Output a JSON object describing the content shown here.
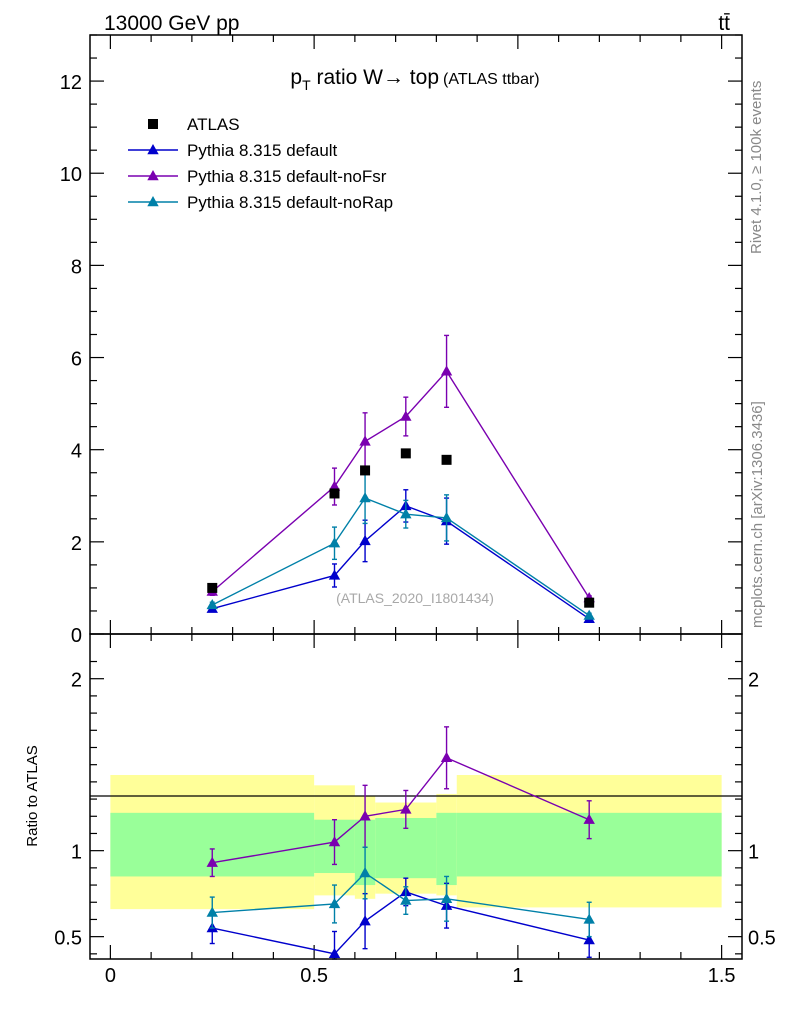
{
  "header": {
    "left": "13000 GeV pp",
    "right": "tt̄"
  },
  "side_labels": {
    "rivet": "Rivet 4.1.0, ≥ 100k events",
    "mcplots": "mcplots.cern.ch [arXiv:1306.3436]"
  },
  "plot_title": {
    "main_p": "p",
    "main_sub": "T",
    "main_rest": " ratio W→ top",
    "tag": "(ATLAS ttbar)"
  },
  "watermark": "(ATLAS_2020_I1801434)",
  "legend": [
    {
      "label": "ATLAS",
      "color": "#000000",
      "marker": "square"
    },
    {
      "label": "Pythia 8.315 default",
      "color": "#0000cc",
      "marker": "triangle"
    },
    {
      "label": "Pythia 8.315 default-noFsr",
      "color": "#7a00b0",
      "marker": "triangle"
    },
    {
      "label": "Pythia 8.315 default-noRap",
      "color": "#0080a8",
      "marker": "triangle"
    }
  ],
  "ratio_ylabel": "Ratio to ATLAS",
  "chart_data": [
    {
      "type": "scatter",
      "panel": "main",
      "title": "pT ratio W→ top (ATLAS ttbar)",
      "xlim": [
        -0.05,
        1.55
      ],
      "ylim": [
        0,
        13
      ],
      "yticks": [
        0,
        2,
        4,
        6,
        8,
        10,
        12
      ],
      "ytick_labels": [
        "0",
        "2",
        "4",
        "6",
        "8",
        "10",
        "12"
      ],
      "data": {
        "name": "ATLAS",
        "x": [
          0.25,
          0.55,
          0.625,
          0.725,
          0.825,
          1.175
        ],
        "y": [
          1.0,
          3.05,
          3.55,
          3.92,
          3.78,
          0.68
        ]
      },
      "series": [
        {
          "name": "Pythia 8.315 default",
          "x": [
            0.25,
            0.55,
            0.625,
            0.725,
            0.825,
            1.175
          ],
          "y": [
            0.55,
            1.27,
            2.02,
            2.78,
            2.45,
            0.33
          ],
          "err": [
            0.05,
            0.25,
            0.45,
            0.35,
            0.5,
            0.05
          ]
        },
        {
          "name": "Pythia 8.315 default-noFsr",
          "x": [
            0.25,
            0.55,
            0.625,
            0.725,
            0.825,
            1.175
          ],
          "y": [
            0.92,
            3.2,
            4.18,
            4.72,
            5.7,
            0.78
          ],
          "err": [
            0.08,
            0.4,
            0.62,
            0.42,
            0.78,
            0.05
          ]
        },
        {
          "name": "Pythia 8.315 default-noRap",
          "x": [
            0.25,
            0.55,
            0.625,
            0.725,
            0.825,
            1.175
          ],
          "y": [
            0.63,
            1.97,
            2.95,
            2.6,
            2.52,
            0.4
          ],
          "err": [
            0.06,
            0.35,
            0.55,
            0.3,
            0.5,
            0.05
          ]
        }
      ]
    },
    {
      "type": "scatter",
      "panel": "ratio",
      "ylabel": "Ratio to ATLAS",
      "xlim": [
        -0.05,
        1.55
      ],
      "ylim": [
        0.37,
        2.26
      ],
      "yticks": [
        0.5,
        1,
        2
      ],
      "ytick_labels": [
        "0.5",
        "1",
        "2"
      ],
      "xticks": [
        0,
        0.5,
        1,
        1.5
      ],
      "xtick_labels": [
        "0",
        "0.5",
        "1",
        "1.5"
      ],
      "bands": [
        {
          "x0": 0.0,
          "x1": 0.5,
          "g": [
            0.85,
            1.22
          ],
          "y": [
            0.66,
            1.44
          ]
        },
        {
          "x0": 0.5,
          "x1": 0.6,
          "g": [
            0.87,
            1.18
          ],
          "y": [
            0.74,
            1.38
          ]
        },
        {
          "x0": 0.6,
          "x1": 0.65,
          "g": [
            0.8,
            1.18
          ],
          "y": [
            0.72,
            1.32
          ]
        },
        {
          "x0": 0.65,
          "x1": 0.8,
          "g": [
            0.84,
            1.19
          ],
          "y": [
            0.75,
            1.28
          ]
        },
        {
          "x0": 0.8,
          "x1": 0.85,
          "g": [
            0.8,
            1.22
          ],
          "y": [
            0.74,
            1.33
          ]
        },
        {
          "x0": 0.85,
          "x1": 1.5,
          "g": [
            0.85,
            1.22
          ],
          "y": [
            0.67,
            1.44
          ]
        }
      ],
      "series": [
        {
          "name": "Pythia 8.315 default",
          "x": [
            0.25,
            0.55,
            0.625,
            0.725,
            0.825,
            1.175
          ],
          "y": [
            0.55,
            0.4,
            0.59,
            0.76,
            0.68,
            0.48
          ],
          "err": [
            0.09,
            0.13,
            0.16,
            0.08,
            0.13,
            0.1
          ]
        },
        {
          "name": "Pythia 8.315 default-noFsr",
          "x": [
            0.25,
            0.55,
            0.625,
            0.725,
            0.825,
            1.175
          ],
          "y": [
            0.93,
            1.05,
            1.2,
            1.24,
            1.54,
            1.18
          ],
          "err": [
            0.08,
            0.13,
            0.18,
            0.11,
            0.18,
            0.11
          ]
        },
        {
          "name": "Pythia 8.315 default-noRap",
          "x": [
            0.25,
            0.55,
            0.625,
            0.725,
            0.825,
            1.175
          ],
          "y": [
            0.64,
            0.69,
            0.87,
            0.71,
            0.72,
            0.6
          ],
          "err": [
            0.09,
            0.11,
            0.15,
            0.08,
            0.13,
            0.1
          ]
        }
      ]
    }
  ]
}
